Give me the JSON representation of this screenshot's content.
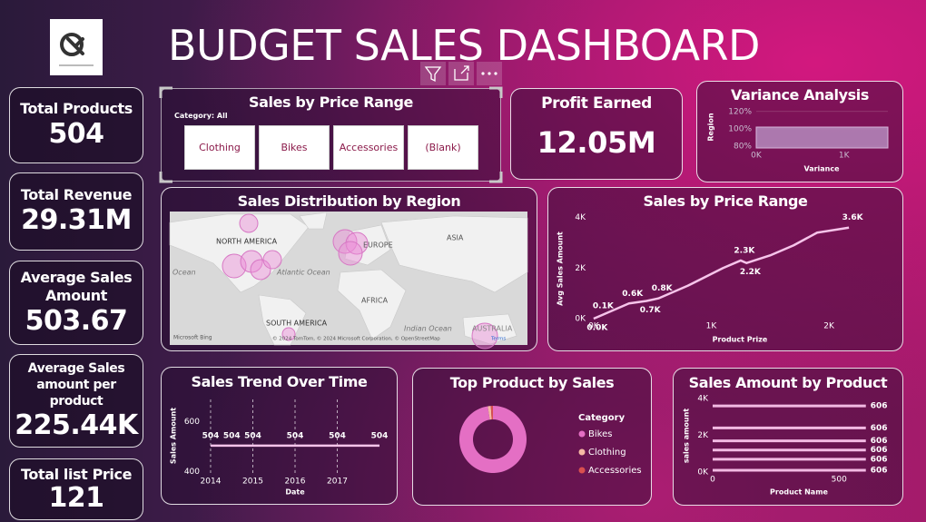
{
  "header": {
    "title": "BUDGET SALES DASHBOARD"
  },
  "kpis": [
    {
      "label": "Total Products",
      "value": "504"
    },
    {
      "label": "Total Revenue",
      "value": "29.31M"
    },
    {
      "label": "Average Sales Amount",
      "value": "503.67"
    },
    {
      "label": "Average Sales amount per product",
      "value": "225.44K"
    },
    {
      "label": "Total list Price",
      "value": "121"
    }
  ],
  "profit": {
    "label": "Profit Earned",
    "value": "12.05M"
  },
  "slicer": {
    "title": "Sales by Price Range",
    "filter": "Category: All",
    "options": [
      "Clothing",
      "Bikes",
      "Accessories",
      "(Blank)"
    ]
  },
  "map": {
    "title": "Sales Distribution by Region",
    "labels": [
      "NORTH AMERICA",
      "EUROPE",
      "ASIA",
      "Ocean",
      "Atlantic Ocean",
      "AFRICA",
      "SOUTH AMERICA",
      "Indian Ocean",
      "AUSTRALIA"
    ],
    "brand": "Microsoft Bing",
    "attribution": "© 2024 TomTom, © 2024 Microsoft Corporation, © OpenStreetMap",
    "terms": "Terms"
  },
  "chart_data": [
    {
      "type": "area",
      "title": "Variance Analysis",
      "y_label": "Region",
      "x_label": "Variance",
      "x": [
        0,
        1500
      ],
      "values": [
        102,
        102
      ],
      "color": "#b58bbd",
      "xlim": [
        0,
        1500
      ],
      "xticks": [
        {
          "value": 0,
          "label": "0K"
        },
        {
          "value": 1000,
          "label": "1K"
        }
      ],
      "ylim": [
        78,
        125
      ],
      "yticks": [
        {
          "value": 80,
          "label": "80%"
        },
        {
          "value": 100,
          "label": "100%"
        },
        {
          "value": 120,
          "label": "120%"
        }
      ],
      "grid": true
    },
    {
      "type": "line",
      "title": "Sales by Price Range",
      "y_label": "Avg Sales Amount",
      "x_label": "Product Prize",
      "x": [
        0,
        50,
        300,
        450,
        550,
        800,
        1100,
        1250,
        1300,
        1500,
        1700,
        1900,
        2170
      ],
      "values": [
        0,
        100,
        600,
        700,
        800,
        1300,
        2000,
        2300,
        2200,
        2500,
        2900,
        3400,
        3600
      ],
      "value_labels": [
        "0.0K",
        "0.1K",
        "0.6K",
        "0.7K",
        "0.8K",
        null,
        null,
        "2.3K",
        "2.2K",
        null,
        null,
        null,
        "3.6K"
      ],
      "color": "#f6c4ea",
      "xlim": [
        -30,
        2555
      ],
      "xticks": [
        {
          "value": 0,
          "label": "0K"
        },
        {
          "value": 1000,
          "label": "1K"
        },
        {
          "value": 2000,
          "label": "2K"
        }
      ],
      "ylim": [
        0,
        4200
      ],
      "yticks": [
        {
          "value": 0,
          "label": "0K"
        },
        {
          "value": 2000,
          "label": "2K"
        },
        {
          "value": 4000,
          "label": "4K"
        }
      ],
      "grid": false
    },
    {
      "type": "line",
      "title": "Sales Trend Over Time",
      "y_label": "Sales Amount",
      "x_label": "Date",
      "x": [
        2014,
        2014.5,
        2015,
        2016,
        2017,
        2018
      ],
      "values": [
        504,
        504,
        504,
        504,
        504,
        504
      ],
      "data_labels": true,
      "color": "#f6c4ea",
      "xlim": [
        2013.85,
        2018.15
      ],
      "xticks": [
        2014,
        2015,
        2016,
        2017
      ],
      "ylim": [
        390,
        690
      ],
      "yticks": [
        400,
        600
      ],
      "grid": true
    },
    {
      "type": "pie",
      "title": "Top Product by Sales",
      "legend_title": "Category",
      "donut": true,
      "categories": [
        "Bikes",
        "Clothing",
        "Accessories"
      ],
      "values": [
        97.5,
        1.5,
        1
      ],
      "colors": [
        "#e46fc4",
        "#f5b9a4",
        "#d8504f"
      ]
    },
    {
      "type": "hline",
      "title": "Sales Amount by Product",
      "y_label": "sales amount",
      "x_label": "Product Name",
      "values": [
        3600,
        2400,
        1700,
        1200,
        700,
        100
      ],
      "x_end": [
        606,
        606,
        606,
        606,
        606,
        606
      ],
      "color": "#f2b9e2",
      "xlim": [
        0,
        650
      ],
      "xticks": [
        0,
        500
      ],
      "ylim": [
        0,
        4100
      ],
      "yticks": [
        {
          "value": 0,
          "label": "0K"
        },
        {
          "value": 2000,
          "label": "2K"
        },
        {
          "value": 4000,
          "label": "4K"
        }
      ]
    }
  ]
}
